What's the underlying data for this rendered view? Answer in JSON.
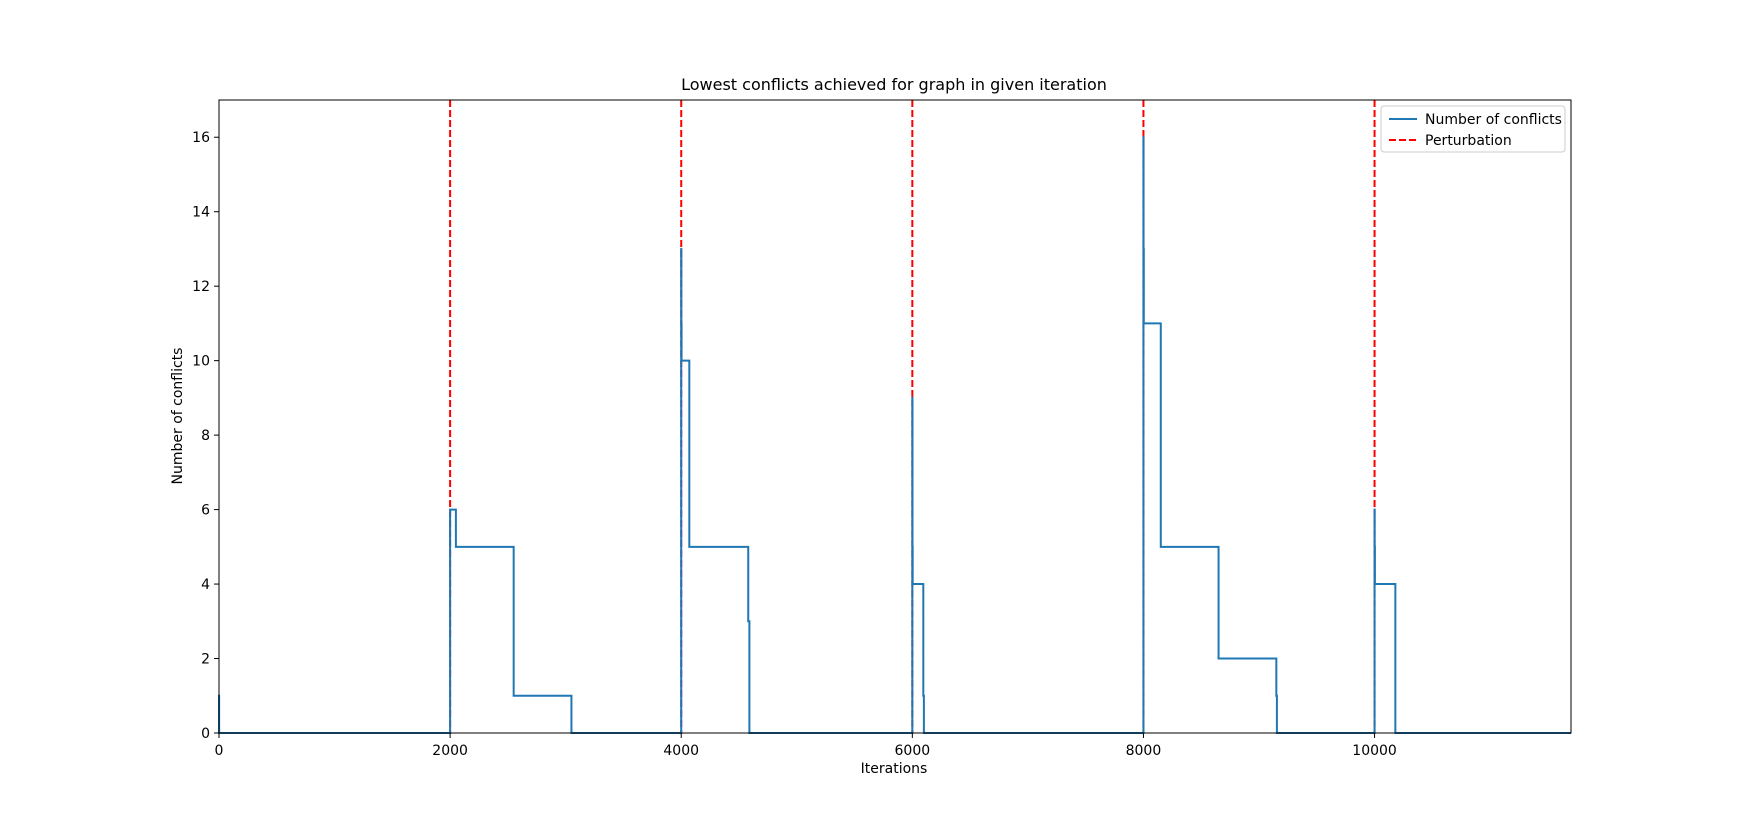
{
  "chart_data": {
    "type": "line",
    "title": "Lowest conflicts achieved for graph in given iteration",
    "xlabel": "Iterations",
    "ylabel": "Number of conflicts",
    "xlim": [
      0,
      11700
    ],
    "ylim": [
      0,
      17
    ],
    "x_ticks": [
      0,
      2000,
      4000,
      6000,
      8000,
      10000
    ],
    "y_ticks": [
      0,
      2,
      4,
      6,
      8,
      10,
      12,
      14,
      16
    ],
    "grid": false,
    "legend_position": "top-right",
    "series": [
      {
        "name": "Number of conflicts",
        "color": "#1f77b4",
        "style": "solid",
        "x": [
          0,
          0,
          1,
          1,
          2000,
          2000,
          2001,
          2001,
          2050,
          2050,
          2550,
          2550,
          3050,
          3050,
          4000,
          4000,
          4001,
          4001,
          4003,
          4003,
          4070,
          4070,
          4580,
          4580,
          4590,
          4590,
          6000,
          6000,
          6001,
          6001,
          6003,
          6003,
          6095,
          6095,
          6100,
          6100,
          8000,
          8000,
          8001,
          8001,
          8003,
          8003,
          8150,
          8150,
          8650,
          8650,
          9150,
          9150,
          9155,
          9155,
          10000,
          10000,
          10001,
          10001,
          10003,
          10003,
          10180,
          10180,
          11700
        ],
        "y": [
          0,
          1,
          1,
          0,
          0,
          6,
          6,
          6,
          6,
          5,
          5,
          1,
          1,
          0,
          0,
          13,
          13,
          11,
          11,
          10,
          10,
          5,
          5,
          3,
          3,
          0,
          0,
          9,
          9,
          5,
          5,
          4,
          4,
          1,
          1,
          0,
          0,
          16,
          16,
          13,
          13,
          11,
          11,
          5,
          5,
          2,
          2,
          1,
          1,
          0,
          0,
          6,
          6,
          5,
          5,
          4,
          4,
          0,
          0
        ]
      },
      {
        "name": "Perturbation",
        "color": "#ff0000",
        "style": "dashed",
        "type": "vlines",
        "x": [
          2000,
          4000,
          6000,
          8000,
          10000
        ]
      }
    ]
  }
}
